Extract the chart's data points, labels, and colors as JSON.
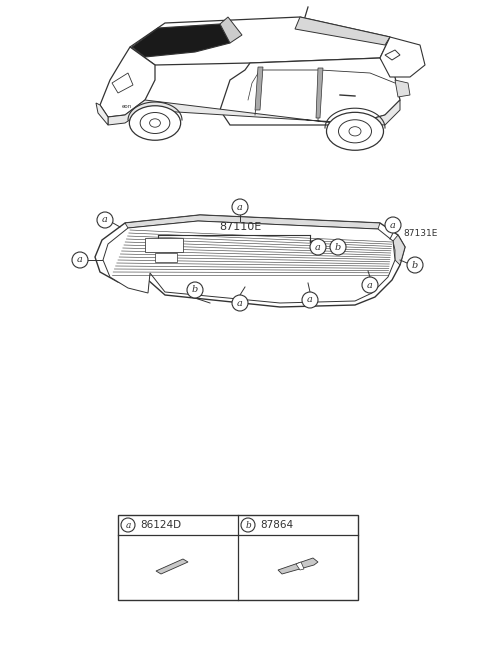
{
  "bg_color": "#ffffff",
  "line_color": "#333333",
  "title_label": "87110E",
  "part_label_right": "87131E",
  "part_a_code": "86124D",
  "part_b_code": "87864",
  "callout_a": "a",
  "callout_b": "b",
  "fig_width": 4.8,
  "fig_height": 6.55,
  "dpi": 100,
  "car_region": [
    0,
    430,
    480,
    655
  ],
  "glass_region": [
    30,
    240,
    450,
    480
  ],
  "table_region": [
    110,
    30,
    380,
    145
  ]
}
